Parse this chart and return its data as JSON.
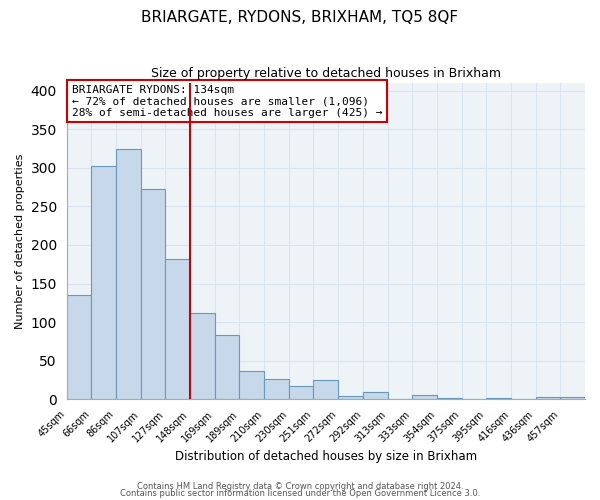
{
  "title": "BRIARGATE, RYDONS, BRIXHAM, TQ5 8QF",
  "subtitle": "Size of property relative to detached houses in Brixham",
  "xlabel": "Distribution of detached houses by size in Brixham",
  "ylabel": "Number of detached properties",
  "bar_labels": [
    "45sqm",
    "66sqm",
    "86sqm",
    "107sqm",
    "127sqm",
    "148sqm",
    "169sqm",
    "189sqm",
    "210sqm",
    "230sqm",
    "251sqm",
    "272sqm",
    "292sqm",
    "313sqm",
    "333sqm",
    "354sqm",
    "375sqm",
    "395sqm",
    "416sqm",
    "436sqm",
    "457sqm"
  ],
  "bar_values": [
    135,
    302,
    325,
    272,
    182,
    112,
    83,
    37,
    26,
    17,
    25,
    4,
    10,
    0,
    5,
    1,
    0,
    2,
    0,
    3,
    3
  ],
  "bar_color": "#c8d8eb",
  "bar_edge_color": "#6699bb",
  "vline_x_index": 4,
  "vline_color": "#cc0000",
  "annotation_text": "BRIARGATE RYDONS: 134sqm\n← 72% of detached houses are smaller (1,096)\n28% of semi-detached houses are larger (425) →",
  "annotation_box_color": "#ffffff",
  "annotation_box_edge": "#cc0000",
  "ylim": [
    0,
    410
  ],
  "yticks": [
    0,
    50,
    100,
    150,
    200,
    250,
    300,
    350,
    400
  ],
  "grid_color": "#d8e4f0",
  "bg_color": "#eef3f8",
  "footer1": "Contains HM Land Registry data © Crown copyright and database right 2024.",
  "footer2": "Contains public sector information licensed under the Open Government Licence 3.0.",
  "figsize": [
    6.0,
    5.0
  ],
  "dpi": 100
}
